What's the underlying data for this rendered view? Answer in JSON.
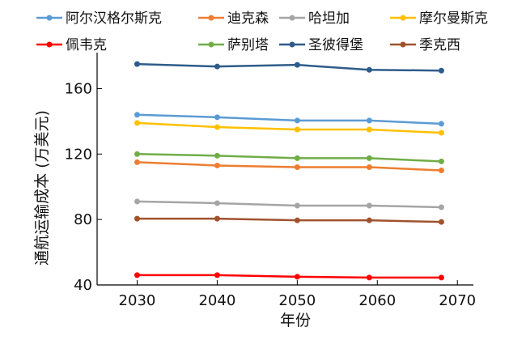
{
  "chart_data": {
    "type": "line",
    "title": "",
    "xlabel": "年份",
    "ylabel": "通航运输成本 (万美元)",
    "xlim": [
      2025,
      2072
    ],
    "ylim": [
      40,
      182
    ],
    "xticks": [
      2030,
      2040,
      2050,
      2060,
      2070
    ],
    "yticks": [
      40,
      80,
      120,
      160
    ],
    "grid": false,
    "legend_position": "top",
    "x": [
      2030,
      2040,
      2050,
      2059,
      2068
    ],
    "series": [
      {
        "name": "阿尔汉格尔斯克",
        "color": "#5b9bd5",
        "values": [
          144,
          142.5,
          140.5,
          140.5,
          138.5
        ]
      },
      {
        "name": "迪克森",
        "color": "#ed7d31",
        "values": [
          115,
          113,
          112,
          112,
          110
        ]
      },
      {
        "name": "哈坦加",
        "color": "#a5a5a5",
        "values": [
          91,
          90,
          88.5,
          88.5,
          87.5
        ]
      },
      {
        "name": "摩尔曼斯克",
        "color": "#ffc000",
        "values": [
          139,
          136.5,
          135,
          135,
          133
        ]
      },
      {
        "name": "佩韦克",
        "color": "#ff0000",
        "values": [
          46,
          46,
          45,
          44.5,
          44.5
        ]
      },
      {
        "name": "萨别塔",
        "color": "#70ad47",
        "values": [
          120,
          119,
          117.5,
          117.5,
          115.5
        ]
      },
      {
        "name": "圣彼得堡",
        "color": "#2e5c8a",
        "values": [
          175,
          173.5,
          174.5,
          171.5,
          171
        ]
      },
      {
        "name": "季克西",
        "color": "#a0522d",
        "values": [
          80.5,
          80.5,
          79.5,
          79.5,
          78.5
        ]
      }
    ]
  }
}
